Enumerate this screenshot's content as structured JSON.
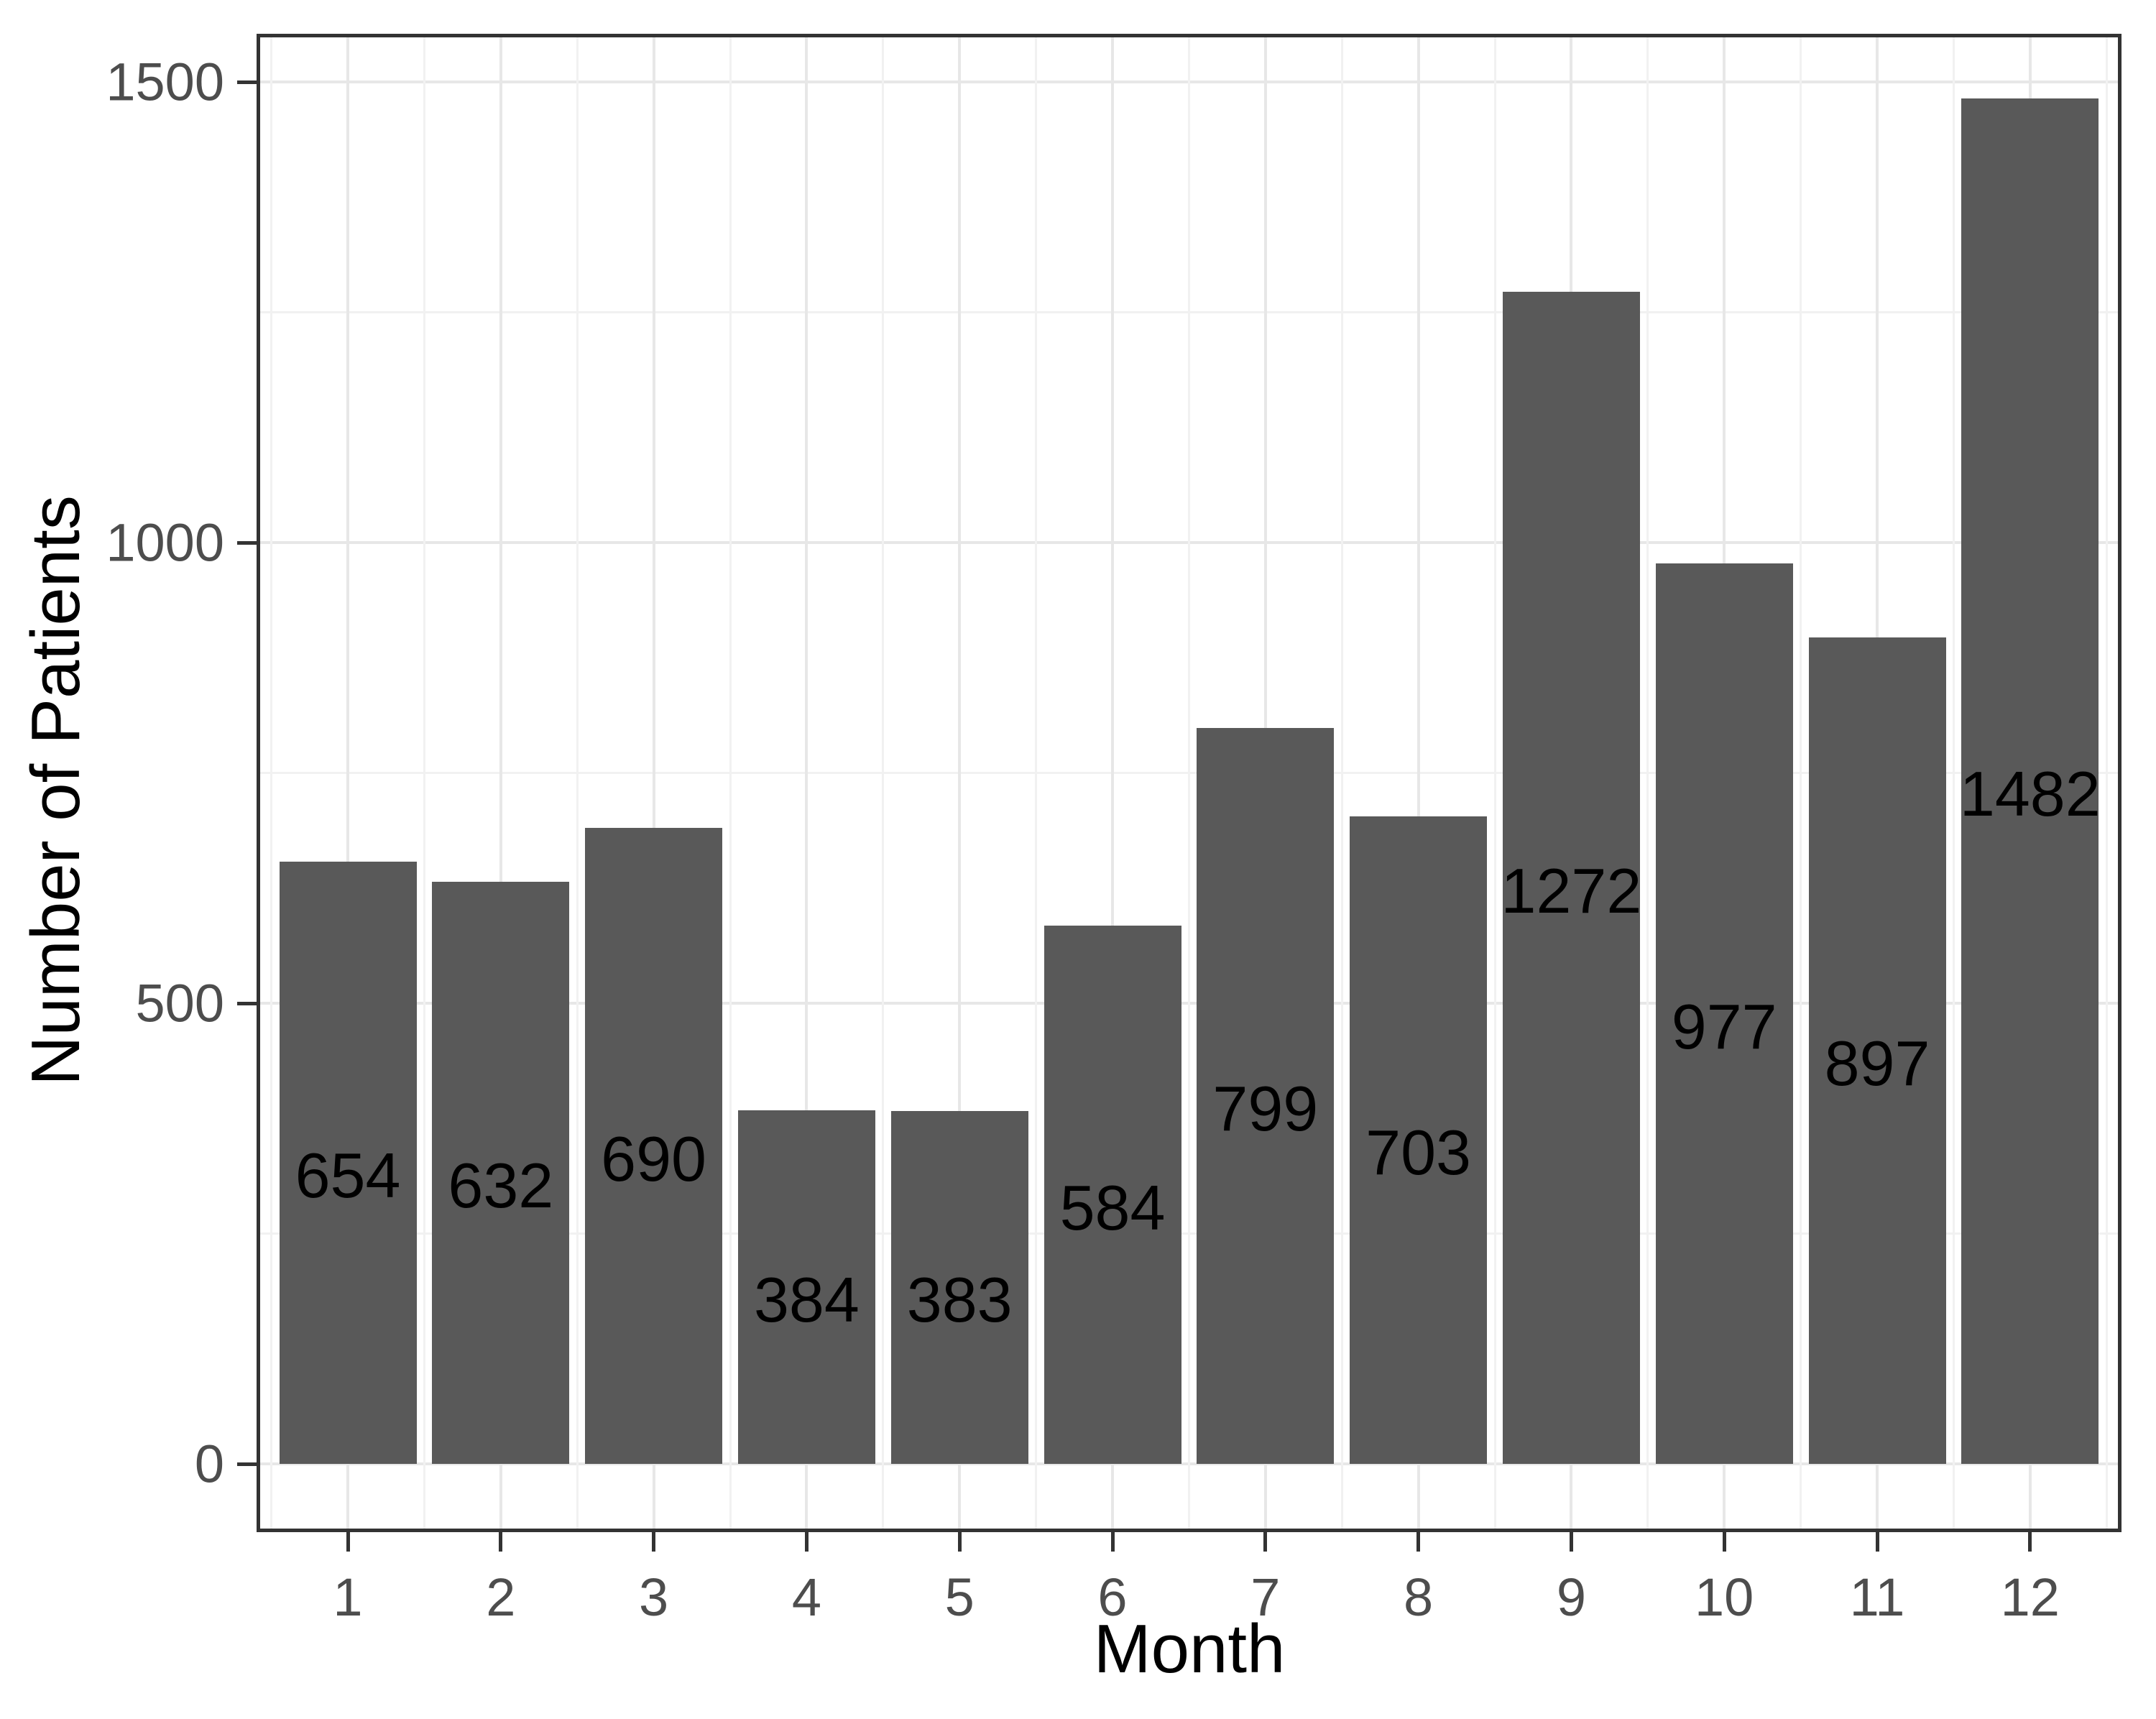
{
  "chart_data": {
    "type": "bar",
    "title": "",
    "xlabel": "Month",
    "ylabel": "Number of Patients",
    "categories": [
      "1",
      "2",
      "3",
      "4",
      "5",
      "6",
      "7",
      "8",
      "9",
      "10",
      "11",
      "12"
    ],
    "values": [
      654,
      632,
      690,
      384,
      383,
      584,
      799,
      703,
      1272,
      977,
      897,
      1482
    ],
    "bar_labels": [
      "654",
      "632",
      "690",
      "384",
      "383",
      "584",
      "799",
      "703",
      "1272",
      "977",
      "897",
      "1482"
    ],
    "ylim": [
      0,
      1500
    ],
    "yticks": [
      0,
      500,
      1000,
      1500
    ],
    "ytick_labels": [
      "0",
      "500",
      "1000",
      "1500"
    ],
    "yticks_minor": [
      250,
      750,
      1250
    ],
    "xtick_labels": [
      "1",
      "2",
      "3",
      "4",
      "5",
      "6",
      "7",
      "8",
      "9",
      "10",
      "11",
      "12"
    ],
    "grid": "major-and-minor",
    "legend": "none",
    "colors": {
      "bar_fill": "#595959",
      "panel_border": "#333333",
      "grid_major": "#E7E7E7",
      "grid_minor": "#F1F1F1",
      "tick_label": "#4D4D4D",
      "axis_title": "#000000",
      "bar_label": "#000000",
      "background": "#FFFFFF"
    }
  }
}
